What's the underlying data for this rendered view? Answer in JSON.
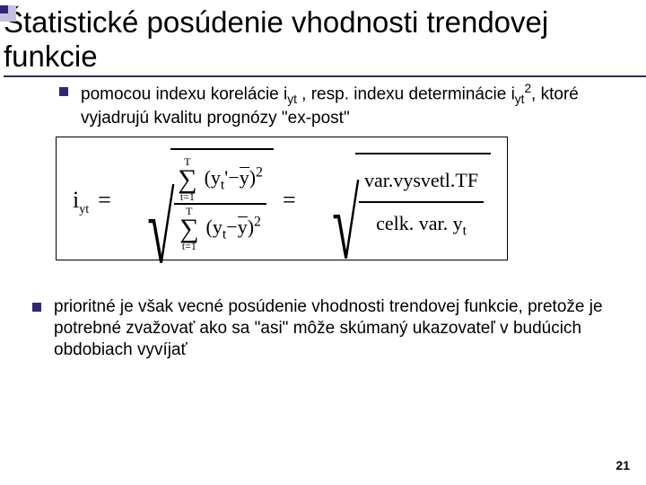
{
  "title": "Štatistické posúdenie vhodnosti trendovej funkcie",
  "bullet1_pre": " pomocou indexu korelácie  i",
  "bullet1_sub1": "yt",
  "bullet1_mid": " , resp.  indexu determinácie i",
  "bullet1_sub2": "yt",
  "bullet1_sup2": "2",
  "bullet1_post": ", ktoré vyjadrujú kvalitu prognózy \"ex-post\"",
  "formula": {
    "lhs_var": "i",
    "lhs_sub": "yt",
    "frac1_num_sum_upper": "T",
    "frac1_num_sum_lower": "t=1",
    "frac1_num_expr_a": "y",
    "frac1_num_expr_a_sub": "t",
    "frac1_num_prime": "'",
    "frac1_num_expr_b": "y",
    "frac1_den_sum_upper": "T",
    "frac1_den_sum_lower": "t=1",
    "frac1_den_expr_a": "y",
    "frac1_den_expr_a_sub": "t",
    "frac1_den_expr_b": "y",
    "rhs_num": "var.vysvetl.TF",
    "rhs_den_a": "celk. var. y",
    "rhs_den_sub": "t"
  },
  "bullet2": "prioritné je však vecné posúdenie vhodnosti trendovej funkcie, pretože je potrebné zvažovať ako sa \"asi\" môže skúmaný ukazovateľ v budúcich obdobiach vyvíjať",
  "page_number": "21",
  "colors": {
    "accent_dark": "#2e2873",
    "accent_light": "#c6bfe0",
    "text": "#000000",
    "bg": "#ffffff"
  }
}
